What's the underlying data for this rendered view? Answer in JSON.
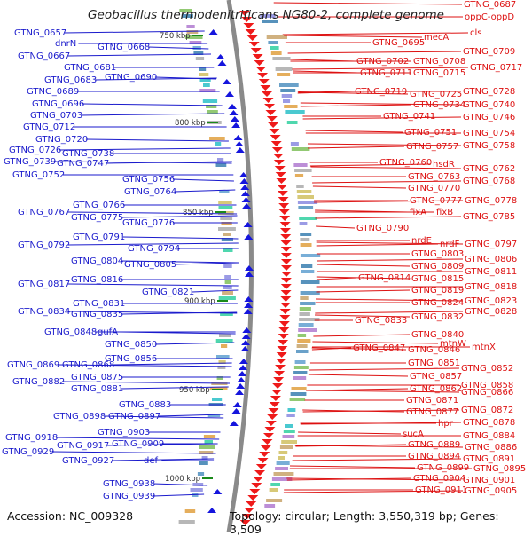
{
  "title": "Geobacillus thermodenitrificans NG80-2, complete genome",
  "accession": "Accession: NC_009328",
  "topology": "Topology: circular; Length: 3,550,319 bp; Genes: 3,509",
  "colors": {
    "left_labels": "#1a1acc",
    "right_labels": "#dd1111",
    "scale": "#333333",
    "backbone": "#8a8a8a",
    "arrows_left": "#1515dd",
    "arrows_right": "#ee1a1a"
  },
  "scale_ticks": [
    "750 kbp",
    "800 kbp",
    "850 kbp",
    "900 kbp",
    "950 kbp",
    "1000 kbp"
  ],
  "left_labels": [
    "GTNG_0657",
    "dnrN",
    "GTNG_0668",
    "GTNG_0667",
    "GTNG_0681",
    "GTNG_0690",
    "GTNG_0683",
    "GTNG_0689",
    "GTNG_0696",
    "GTNG_0703",
    "GTNG_0712",
    "GTNG_0720",
    "GTNG_0726",
    "GTNG_0738",
    "GTNG_0739",
    "GTNG_0747",
    "GTNG_0752",
    "GTNG_0756",
    "GTNG_0764",
    "GTNG_0766",
    "GTNG_0767",
    "GTNG_0775",
    "GTNG_0776",
    "GTNG_0791",
    "GTNG_0792",
    "GTNG_0794",
    "GTNG_0804",
    "GTNG_0805",
    "GTNG_0816",
    "GTNG_0817",
    "GTNG_0821",
    "GTNG_0831",
    "GTNG_0834",
    "GTNG_0835",
    "GTNG_0848",
    "gufA",
    "GTNG_0850",
    "GTNG_0856",
    "GTNG_0869",
    "GTNG_0868",
    "GTNG_0875",
    "GTNG_0882",
    "GTNG_0881",
    "GTNG_0883",
    "GTNG_0898",
    "GTNG_0897",
    "GTNG_0903",
    "GTNG_0918",
    "GTNG_0917",
    "GTNG_0909",
    "GTNG_0929",
    "GTNG_0927",
    "def",
    "GTNG_0938",
    "GTNG_0939"
  ],
  "right_labels": [
    "GTNG_0687",
    "oppC-oppD",
    "cls",
    "mecA",
    "GTNG_0695",
    "GTNG_0709",
    "GTNG_0702",
    "GTNG_0708",
    "GTNG_0717",
    "GTNG_0711",
    "GTNG_0715",
    "GTNG_0719",
    "GTNG_0725",
    "GTNG_0728",
    "GTNG_0734",
    "GTNG_0740",
    "GTNG_0741",
    "GTNG_0746",
    "GTNG_0751",
    "GTNG_0754",
    "GTNG_0757",
    "GTNG_0758",
    "GTNG_0760",
    "hsdR",
    "GTNG_0762",
    "GTNG_0763",
    "GTNG_0768",
    "GTNG_0770",
    "GTNG_0777",
    "GTNG_0778",
    "fixA",
    "fixB",
    "GTNG_0785",
    "GTNG_0790",
    "nrdE",
    "nrdF",
    "GTNG_0797",
    "GTNG_0803",
    "GTNG_0806",
    "GTNG_0809",
    "GTNG_0811",
    "GTNG_0814",
    "GTNG_0815",
    "GTNG_0818",
    "GTNG_0819",
    "GTNG_0823",
    "GTNG_0824",
    "GTNG_0828",
    "GTNG_0832",
    "GTNG_0833",
    "GTNG_0840",
    "mtnW",
    "mtnX",
    "GTNG_0847",
    "GTNG_0846",
    "GTNG_0851",
    "GTNG_0852",
    "GTNG_0857",
    "GTNG_0858",
    "GTNG_0862",
    "GTNG_0866",
    "GTNG_0871",
    "GTNG_0872",
    "GTNG_0877",
    "hpr",
    "GTNG_0878",
    "sucA",
    "GTNG_0884",
    "GTNG_0889",
    "GTNG_0886",
    "GTNG_0894",
    "GTNG_0891",
    "GTNG_0899",
    "GTNG_0895",
    "GTNG_0904",
    "GTNG_0901",
    "GTNG_0911",
    "GTNG_0905"
  ]
}
